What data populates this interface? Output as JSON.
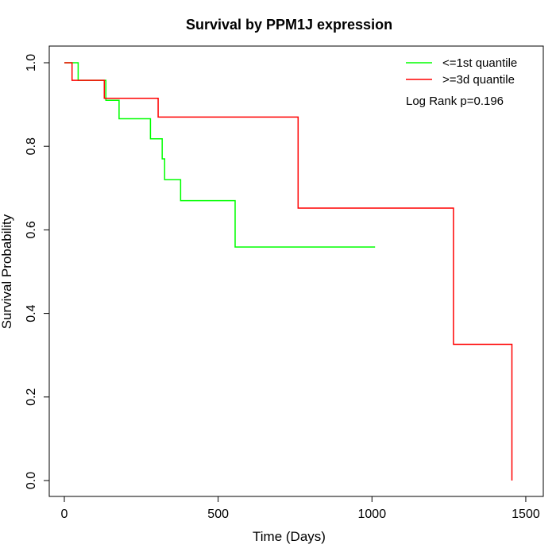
{
  "chart_data": {
    "type": "line",
    "step": true,
    "title": "Survival by PPM1J expression",
    "xlabel": "Time (Days)",
    "ylabel": "Survival Probability",
    "xlim": [
      0,
      1500
    ],
    "ylim": [
      0,
      1.0
    ],
    "x_ticks": [
      "0",
      "500",
      "1000",
      "1500"
    ],
    "y_ticks": [
      "0.0",
      "0.2",
      "0.4",
      "0.6",
      "0.8",
      "1.0"
    ],
    "x_tick_values": [
      0,
      500,
      1000,
      1500
    ],
    "y_tick_values": [
      0,
      0.2,
      0.4,
      0.6,
      0.8,
      1.0
    ],
    "grid": false,
    "legend_position": "top-right",
    "annotation": "Log Rank p=0.196",
    "series": [
      {
        "name": "<=1st quantile",
        "color": "#00ff00",
        "points": [
          [
            0,
            1.0
          ],
          [
            45,
            1.0
          ],
          [
            45,
            0.958
          ],
          [
            135,
            0.958
          ],
          [
            135,
            0.91
          ],
          [
            178,
            0.91
          ],
          [
            178,
            0.866
          ],
          [
            280,
            0.866
          ],
          [
            280,
            0.818
          ],
          [
            318,
            0.818
          ],
          [
            318,
            0.77
          ],
          [
            326,
            0.77
          ],
          [
            326,
            0.72
          ],
          [
            378,
            0.72
          ],
          [
            378,
            0.67
          ],
          [
            555,
            0.67
          ],
          [
            555,
            0.559
          ],
          [
            1010,
            0.559
          ]
        ]
      },
      {
        "name": ">=3d quantile",
        "color": "#ff0000",
        "points": [
          [
            0,
            1.0
          ],
          [
            25,
            1.0
          ],
          [
            25,
            0.958
          ],
          [
            130,
            0.958
          ],
          [
            130,
            0.915
          ],
          [
            305,
            0.915
          ],
          [
            305,
            0.87
          ],
          [
            760,
            0.87
          ],
          [
            760,
            0.652
          ],
          [
            1265,
            0.652
          ],
          [
            1265,
            0.326
          ],
          [
            1455,
            0.326
          ],
          [
            1455,
            0.0
          ]
        ]
      }
    ]
  }
}
